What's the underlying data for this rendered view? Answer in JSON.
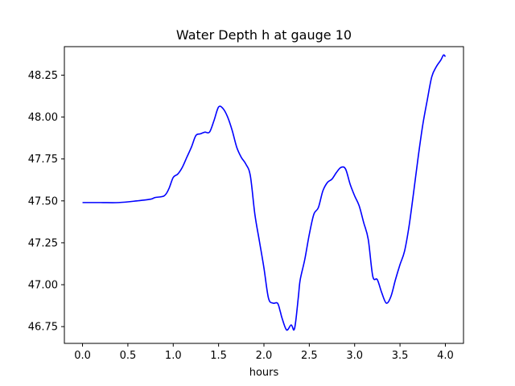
{
  "chart_data": {
    "type": "line",
    "title": "Water Depth h at gauge 10",
    "xlabel": "hours",
    "ylabel": "",
    "xlim": [
      -0.2,
      4.2
    ],
    "ylim": [
      46.65,
      48.42
    ],
    "grid": false,
    "legend": "none",
    "x_ticks": [
      0.0,
      0.5,
      1.0,
      1.5,
      2.0,
      2.5,
      3.0,
      3.5,
      4.0
    ],
    "x_tick_labels": [
      "0.0",
      "0.5",
      "1.0",
      "1.5",
      "2.0",
      "2.5",
      "3.0",
      "3.5",
      "4.0"
    ],
    "y_ticks": [
      46.75,
      47.0,
      47.25,
      47.5,
      47.75,
      48.0,
      48.25
    ],
    "y_tick_labels": [
      "46.75",
      "47.00",
      "47.25",
      "47.50",
      "47.75",
      "48.00",
      "48.25"
    ],
    "series": [
      {
        "color": "#0000ff",
        "x": [
          0.0,
          0.2,
          0.4,
          0.6,
          0.75,
          0.8,
          0.9,
          0.95,
          1.0,
          1.05,
          1.1,
          1.15,
          1.2,
          1.25,
          1.3,
          1.35,
          1.4,
          1.45,
          1.5,
          1.55,
          1.6,
          1.65,
          1.7,
          1.75,
          1.8,
          1.85,
          1.9,
          1.95,
          2.0,
          2.05,
          2.1,
          2.15,
          2.18,
          2.2,
          2.25,
          2.3,
          2.33,
          2.35,
          2.38,
          2.4,
          2.45,
          2.5,
          2.55,
          2.6,
          2.65,
          2.7,
          2.75,
          2.8,
          2.85,
          2.9,
          2.95,
          3.0,
          3.05,
          3.1,
          3.15,
          3.2,
          3.25,
          3.3,
          3.35,
          3.4,
          3.45,
          3.5,
          3.55,
          3.6,
          3.65,
          3.7,
          3.75,
          3.8,
          3.85,
          3.9,
          3.95,
          3.98,
          4.0
        ],
        "values": [
          47.49,
          47.49,
          47.49,
          47.5,
          47.51,
          47.52,
          47.53,
          47.57,
          47.64,
          47.66,
          47.7,
          47.76,
          47.82,
          47.89,
          47.9,
          47.91,
          47.91,
          47.98,
          48.06,
          48.05,
          48.0,
          47.92,
          47.82,
          47.76,
          47.72,
          47.65,
          47.42,
          47.26,
          47.1,
          46.92,
          46.89,
          46.89,
          46.84,
          46.8,
          46.73,
          46.76,
          46.73,
          46.78,
          46.93,
          47.03,
          47.15,
          47.3,
          47.42,
          47.46,
          47.56,
          47.61,
          47.63,
          47.67,
          47.7,
          47.69,
          47.6,
          47.53,
          47.47,
          47.37,
          47.27,
          47.05,
          47.03,
          46.95,
          46.89,
          46.93,
          47.03,
          47.12,
          47.2,
          47.35,
          47.55,
          47.76,
          47.95,
          48.1,
          48.24,
          48.3,
          48.34,
          48.37,
          48.36
        ]
      }
    ]
  }
}
